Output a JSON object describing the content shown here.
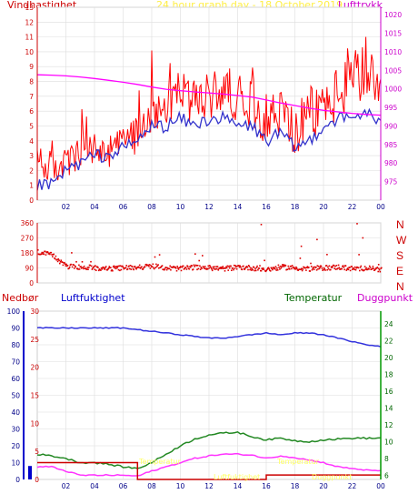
{
  "header": {
    "wind_label": "Vindhastighet",
    "title": "24 hour graph day - 18.October.2019",
    "pressure_label": "Lufttrykk"
  },
  "lower_header": {
    "rain_label": "Nedbør",
    "humidity_label": "Luftfuktighet",
    "temp_label": "Temperatur",
    "dew_label": "Duggpunkt"
  },
  "compass": [
    "N",
    "W",
    "S",
    "E",
    "N"
  ],
  "colors": {
    "wind": "#ff0000",
    "wind_avg": "#3333cc",
    "pressure": "#ff00ff",
    "direction": "#dd0000",
    "humidity": "#3333dd",
    "temperature": "#228822",
    "dewpoint": "#ff33ff",
    "rain": "#cc0000",
    "rain_axis": "#0000cc",
    "temp_axis": "#009900",
    "faint_label": "#ffff66",
    "grid": "#dddddd"
  },
  "chart_data": [
    {
      "type": "line",
      "name": "wind-pressure",
      "title": "24 hour graph day - 18.October.2019",
      "xticks": [
        "02",
        "04",
        "06",
        "08",
        "10",
        "12",
        "14",
        "16",
        "18",
        "20",
        "22",
        "00"
      ],
      "x_hours": [
        0.0,
        1.0,
        2.0,
        3.0,
        4.0,
        5.0,
        6.0,
        7.0,
        8.0,
        9.0,
        10.0,
        11.0,
        12.0,
        13.0,
        14.0,
        15.0,
        16.0,
        17.0,
        18.0,
        19.0,
        20.0,
        21.0,
        22.0,
        23.0,
        24.0
      ],
      "left_axis": {
        "label": "Vindhastighet",
        "ylim": [
          0,
          13
        ],
        "ticks": [
          "0",
          "1",
          "2",
          "3",
          "4",
          "5",
          "6",
          "7",
          "8",
          "9",
          "10",
          "11",
          "12",
          "13"
        ]
      },
      "right_axis": {
        "label": "Lufttrykk",
        "ylim": [
          970,
          1022
        ],
        "ticks": [
          "975",
          "980",
          "985",
          "990",
          "995",
          "1000",
          "1005",
          "1010",
          "1015",
          "1020"
        ]
      },
      "series": [
        {
          "name": "Vindhastighet",
          "axis": "left",
          "values": [
            2.5,
            2.0,
            2.5,
            3.0,
            3.5,
            3.0,
            4.0,
            4.5,
            6.0,
            6.5,
            7.5,
            6.5,
            7.0,
            7.5,
            7.0,
            6.5,
            5.5,
            6.0,
            4.5,
            5.5,
            6.5,
            7.0,
            8.0,
            9.0,
            5.5
          ]
        },
        {
          "name": "",
          "axis": "left",
          "values": [
            1.0,
            1.0,
            2.0,
            2.5,
            3.0,
            3.0,
            3.5,
            4.0,
            5.0,
            5.0,
            5.5,
            5.0,
            5.5,
            5.5,
            5.0,
            5.0,
            4.0,
            4.5,
            3.5,
            4.0,
            5.0,
            5.5,
            5.5,
            6.0,
            5.0
          ]
        },
        {
          "name": "Lufttrykk",
          "axis": "right",
          "values": [
            1003.8,
            1003.7,
            1003.5,
            1003.2,
            1002.8,
            1002.3,
            1001.8,
            1001.2,
            1000.5,
            999.9,
            999.5,
            999.2,
            998.9,
            998.6,
            998.2,
            997.8,
            997.0,
            996.2,
            995.5,
            994.8,
            994.2,
            993.8,
            993.4,
            993.1,
            992.9
          ]
        }
      ]
    },
    {
      "type": "scatter",
      "name": "wind-direction",
      "yticks": [
        "0",
        "90",
        "180",
        "270",
        "360"
      ],
      "ylim": [
        0,
        360
      ],
      "x_hours": [
        0.0,
        1.0,
        2.0,
        3.0,
        4.0,
        5.0,
        6.0,
        7.0,
        8.0,
        9.0,
        10.0,
        11.0,
        12.0,
        13.0,
        14.0,
        15.0,
        16.0,
        17.0,
        18.0,
        19.0,
        20.0,
        21.0,
        22.0,
        23.0,
        24.0
      ],
      "values": [
        185,
        165,
        100,
        95,
        90,
        85,
        90,
        95,
        100,
        90,
        85,
        95,
        90,
        85,
        95,
        90,
        80,
        95,
        90,
        85,
        90,
        95,
        85,
        90,
        80
      ],
      "outliers": [
        [
          15.6,
          350
        ],
        [
          18.4,
          220
        ],
        [
          19.5,
          260
        ],
        [
          20.2,
          170
        ],
        [
          22.3,
          355
        ],
        [
          22.7,
          270
        ],
        [
          23.8,
          110
        ]
      ]
    },
    {
      "type": "line",
      "name": "humidity-temp-rain",
      "xticks": [
        "02",
        "04",
        "06",
        "08",
        "10",
        "12",
        "14",
        "16",
        "18",
        "20",
        "22",
        "00"
      ],
      "x_hours": [
        0.0,
        1.0,
        2.0,
        3.0,
        4.0,
        5.0,
        6.0,
        7.0,
        8.0,
        9.0,
        10.0,
        11.0,
        12.0,
        13.0,
        14.0,
        15.0,
        16.0,
        17.0,
        18.0,
        19.0,
        20.0,
        21.0,
        22.0,
        23.0,
        24.0
      ],
      "axes": {
        "humidity_ticks": [
          "0",
          "10",
          "20",
          "30",
          "40",
          "50",
          "60",
          "70",
          "80",
          "90",
          "100"
        ],
        "rain_ticks": [
          "0",
          "5",
          "10",
          "15",
          "20",
          "25",
          "30"
        ],
        "temp_ticks": [
          "6",
          "8",
          "10",
          "12",
          "14",
          "16",
          "18",
          "20",
          "22",
          "24"
        ],
        "humidity_ylim": [
          0,
          100
        ],
        "temp_ylim": [
          5.5,
          25.5
        ]
      },
      "series": [
        {
          "name": "Luftfuktighet",
          "axis": "humidity",
          "values": [
            90,
            90,
            90,
            90,
            90,
            90,
            90,
            89,
            88,
            87,
            86,
            85,
            84,
            84,
            85,
            86,
            87,
            86,
            87,
            87,
            86,
            84,
            82,
            80,
            79
          ]
        },
        {
          "name": "Temperatur",
          "axis": "temp",
          "values": [
            8.5,
            8.3,
            8.0,
            7.5,
            7.5,
            7.3,
            7.0,
            6.8,
            7.5,
            8.5,
            9.5,
            10.3,
            10.8,
            11.0,
            11.1,
            10.6,
            10.2,
            10.4,
            10.1,
            10.0,
            10.2,
            10.3,
            10.4,
            10.4,
            10.4
          ]
        },
        {
          "name": "Duggpunkt",
          "axis": "temp",
          "values": [
            7.0,
            7.0,
            6.5,
            6.0,
            6.0,
            6.0,
            6.0,
            5.9,
            6.5,
            7.0,
            7.5,
            8.0,
            8.3,
            8.5,
            8.5,
            8.4,
            8.0,
            8.3,
            8.1,
            7.8,
            7.5,
            7.0,
            6.8,
            6.6,
            6.5
          ]
        },
        {
          "name": "Nedbør",
          "axis": "rain",
          "values": [
            0.0,
            0.0,
            0.0,
            0.0,
            0.0,
            0.0,
            0.0,
            0.0,
            0.0,
            0.0,
            0.0,
            0.0,
            0.0,
            0.0,
            0.0,
            0.0,
            0.0,
            0.0,
            0.0,
            0.0,
            0.0,
            0.0,
            0.0,
            0.0,
            0.0
          ]
        }
      ],
      "rain_steps": [
        [
          0,
          0.5,
          3.0
        ],
        [
          0.5,
          7.0,
          3.0
        ],
        [
          7.0,
          16.0,
          0.0
        ],
        [
          16.0,
          24.0,
          0.8
        ]
      ]
    }
  ]
}
